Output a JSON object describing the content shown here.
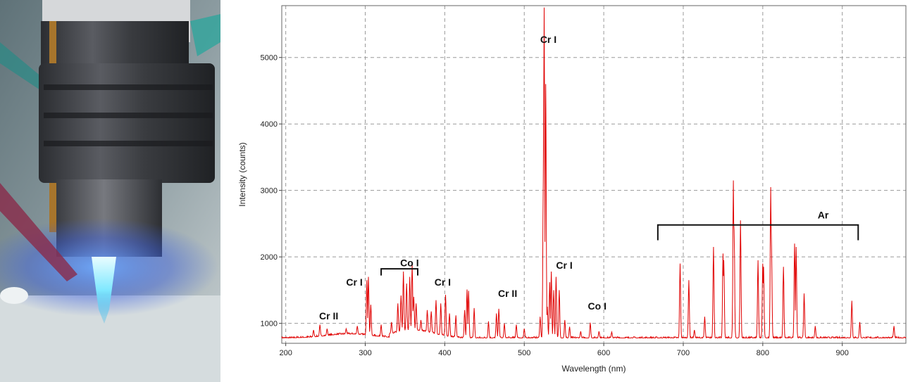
{
  "photo": {
    "description_icon": "plasma-torch-photo",
    "colors": {
      "plasma": "#7fe8ff",
      "glow": "#3a6cff",
      "metal": "#3d3f45",
      "background": "#b9c4c8"
    }
  },
  "chart_data": {
    "type": "line",
    "xlabel": "Wavelength (nm)",
    "ylabel": "Intensity (counts)",
    "xlim": [
      195,
      980
    ],
    "ylim": [
      700,
      5780
    ],
    "xticks": [
      200,
      300,
      400,
      500,
      600,
      700,
      800,
      900
    ],
    "yticks": [
      1000,
      2000,
      3000,
      4000,
      5000
    ],
    "grid": true,
    "line_color": "#e00000",
    "baseline": 780,
    "peaks": [
      {
        "x": 235,
        "y": 900
      },
      {
        "x": 243,
        "y": 980
      },
      {
        "x": 252,
        "y": 920
      },
      {
        "x": 276,
        "y": 920
      },
      {
        "x": 290,
        "y": 960
      },
      {
        "x": 302,
        "y": 1650
      },
      {
        "x": 304,
        "y": 1700
      },
      {
        "x": 307,
        "y": 1280
      },
      {
        "x": 320,
        "y": 980
      },
      {
        "x": 333,
        "y": 1020
      },
      {
        "x": 341,
        "y": 1300
      },
      {
        "x": 345,
        "y": 1420
      },
      {
        "x": 348,
        "y": 1780
      },
      {
        "x": 352,
        "y": 1600
      },
      {
        "x": 356,
        "y": 1700
      },
      {
        "x": 359,
        "y": 1880
      },
      {
        "x": 361,
        "y": 1400
      },
      {
        "x": 364,
        "y": 1300
      },
      {
        "x": 370,
        "y": 1050
      },
      {
        "x": 378,
        "y": 1200
      },
      {
        "x": 383,
        "y": 1180
      },
      {
        "x": 389,
        "y": 1350
      },
      {
        "x": 395,
        "y": 1300
      },
      {
        "x": 401,
        "y": 1430
      },
      {
        "x": 406,
        "y": 1150
      },
      {
        "x": 414,
        "y": 1120
      },
      {
        "x": 425,
        "y": 1200
      },
      {
        "x": 428,
        "y": 1510
      },
      {
        "x": 430,
        "y": 1490
      },
      {
        "x": 437,
        "y": 1230
      },
      {
        "x": 455,
        "y": 1030
      },
      {
        "x": 465,
        "y": 1150
      },
      {
        "x": 468,
        "y": 1220
      },
      {
        "x": 475,
        "y": 1000
      },
      {
        "x": 490,
        "y": 980
      },
      {
        "x": 500,
        "y": 920
      },
      {
        "x": 520,
        "y": 1100
      },
      {
        "x": 524,
        "y": 3200
      },
      {
        "x": 525,
        "y": 5750
      },
      {
        "x": 527,
        "y": 4600
      },
      {
        "x": 529,
        "y": 1250
      },
      {
        "x": 532,
        "y": 1620
      },
      {
        "x": 534,
        "y": 1780
      },
      {
        "x": 537,
        "y": 1500
      },
      {
        "x": 540,
        "y": 1700
      },
      {
        "x": 544,
        "y": 1500
      },
      {
        "x": 551,
        "y": 1050
      },
      {
        "x": 557,
        "y": 950
      },
      {
        "x": 571,
        "y": 880
      },
      {
        "x": 583,
        "y": 1010
      },
      {
        "x": 594,
        "y": 880
      },
      {
        "x": 610,
        "y": 870
      },
      {
        "x": 696,
        "y": 1900
      },
      {
        "x": 707,
        "y": 1650
      },
      {
        "x": 714,
        "y": 900
      },
      {
        "x": 727,
        "y": 1100
      },
      {
        "x": 738,
        "y": 2150
      },
      {
        "x": 750,
        "y": 2050
      },
      {
        "x": 751,
        "y": 1950
      },
      {
        "x": 763,
        "y": 3150
      },
      {
        "x": 764,
        "y": 2400
      },
      {
        "x": 772,
        "y": 2550
      },
      {
        "x": 794,
        "y": 1950
      },
      {
        "x": 800,
        "y": 1900
      },
      {
        "x": 801,
        "y": 1850
      },
      {
        "x": 810,
        "y": 3050
      },
      {
        "x": 811,
        "y": 2150
      },
      {
        "x": 826,
        "y": 1850
      },
      {
        "x": 840,
        "y": 2200
      },
      {
        "x": 842,
        "y": 2150
      },
      {
        "x": 852,
        "y": 1450
      },
      {
        "x": 866,
        "y": 960
      },
      {
        "x": 912,
        "y": 1340
      },
      {
        "x": 922,
        "y": 1020
      },
      {
        "x": 965,
        "y": 960
      }
    ],
    "annotations": [
      {
        "text": "Cr II",
        "x": 242,
        "y": 1060
      },
      {
        "text": "Cr I",
        "x": 276,
        "y": 1570
      },
      {
        "text": "Co I",
        "x": 344,
        "y": 1860
      },
      {
        "text": "Cr I",
        "x": 387,
        "y": 1570
      },
      {
        "text": "Cr II",
        "x": 467,
        "y": 1400
      },
      {
        "text": "Cr I",
        "x": 520,
        "y": 5220
      },
      {
        "text": "Cr I",
        "x": 540,
        "y": 1820
      },
      {
        "text": "Co I",
        "x": 580,
        "y": 1210
      },
      {
        "text": "Ar",
        "x": 869,
        "y": 2580
      }
    ],
    "brackets": [
      {
        "name": "co-i-bracket",
        "x1": 320,
        "x2": 366,
        "y": 1820,
        "tick_down": 100
      },
      {
        "name": "ar-bracket",
        "x1": 668,
        "x2": 920,
        "y": 2480,
        "tick_down": 230
      }
    ]
  }
}
